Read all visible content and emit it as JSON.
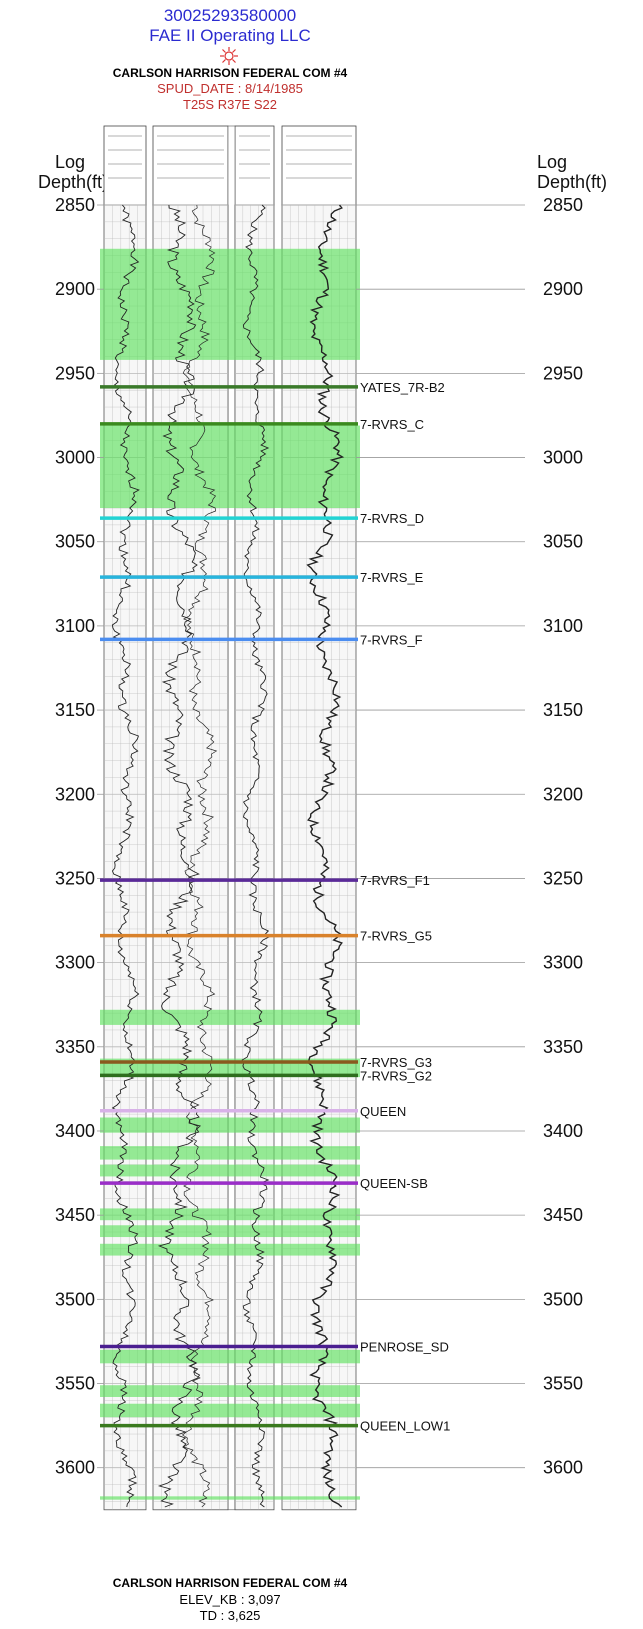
{
  "header": {
    "api": "30025293580000",
    "operator": "FAE II Operating LLC",
    "well_name": "CARLSON HARRISON FEDERAL COM #4",
    "spud_date": "SPUD_DATE : 8/14/1985",
    "location": "T25S R37E S22"
  },
  "axis": {
    "label_line1": "Log",
    "label_line2": "Depth(ft)",
    "depth_min": 2850,
    "depth_max": 3625,
    "ticks": [
      2850,
      2900,
      2950,
      3000,
      3050,
      3100,
      3150,
      3200,
      3250,
      3300,
      3350,
      3400,
      3450,
      3500,
      3550,
      3600
    ]
  },
  "tops": [
    {
      "name": "YATES_7R-B2",
      "depth": 2958,
      "color": "#3a7a2a"
    },
    {
      "name": "7-RVRS_C",
      "depth": 2980,
      "color": "#3a8a1e"
    },
    {
      "name": "7-RVRS_D",
      "depth": 3036,
      "color": "#22d3d3"
    },
    {
      "name": "7-RVRS_E",
      "depth": 3071,
      "color": "#28b4dc"
    },
    {
      "name": "7-RVRS_F",
      "depth": 3108,
      "color": "#4b8df0"
    },
    {
      "name": "7-RVRS_F1",
      "depth": 3251,
      "color": "#5a2a98"
    },
    {
      "name": "7-RVRS_G5",
      "depth": 3284,
      "color": "#d9822b"
    },
    {
      "name": "7-RVRS_G3",
      "depth": 3359,
      "color": "#8a5a1e"
    },
    {
      "name": "7-RVRS_G2",
      "depth": 3367,
      "color": "#2e6e1e"
    },
    {
      "name": "QUEEN",
      "depth": 3388,
      "color": "#d8b2e8"
    },
    {
      "name": "QUEEN-SB",
      "depth": 3431,
      "color": "#9a2ec8"
    },
    {
      "name": "PENROSE_SD",
      "depth": 3528,
      "color": "#4a1e90"
    },
    {
      "name": "QUEEN_LOW1",
      "depth": 3575,
      "color": "#3a7a1e"
    }
  ],
  "shaded_intervals": [
    [
      2876,
      2942
    ],
    [
      2981,
      3030
    ],
    [
      3328,
      3337
    ],
    [
      3357,
      3368
    ],
    [
      3392,
      3401
    ],
    [
      3409,
      3417
    ],
    [
      3420,
      3427
    ],
    [
      3446,
      3453
    ],
    [
      3456,
      3463
    ],
    [
      3467,
      3474
    ],
    [
      3530,
      3538
    ],
    [
      3551,
      3558
    ],
    [
      3562,
      3570
    ],
    [
      3617,
      3619
    ]
  ],
  "footer": {
    "well_name": "CARLSON HARRISON FEDERAL COM #4",
    "elev_kb": "ELEV_KB : 3,097",
    "td": "TD : 3,625"
  },
  "colors": {
    "header_blue": "#2b2bd0",
    "header_red": "#c0302e",
    "shade_green": "#5fe25f",
    "grid": "#b8b8b8"
  }
}
